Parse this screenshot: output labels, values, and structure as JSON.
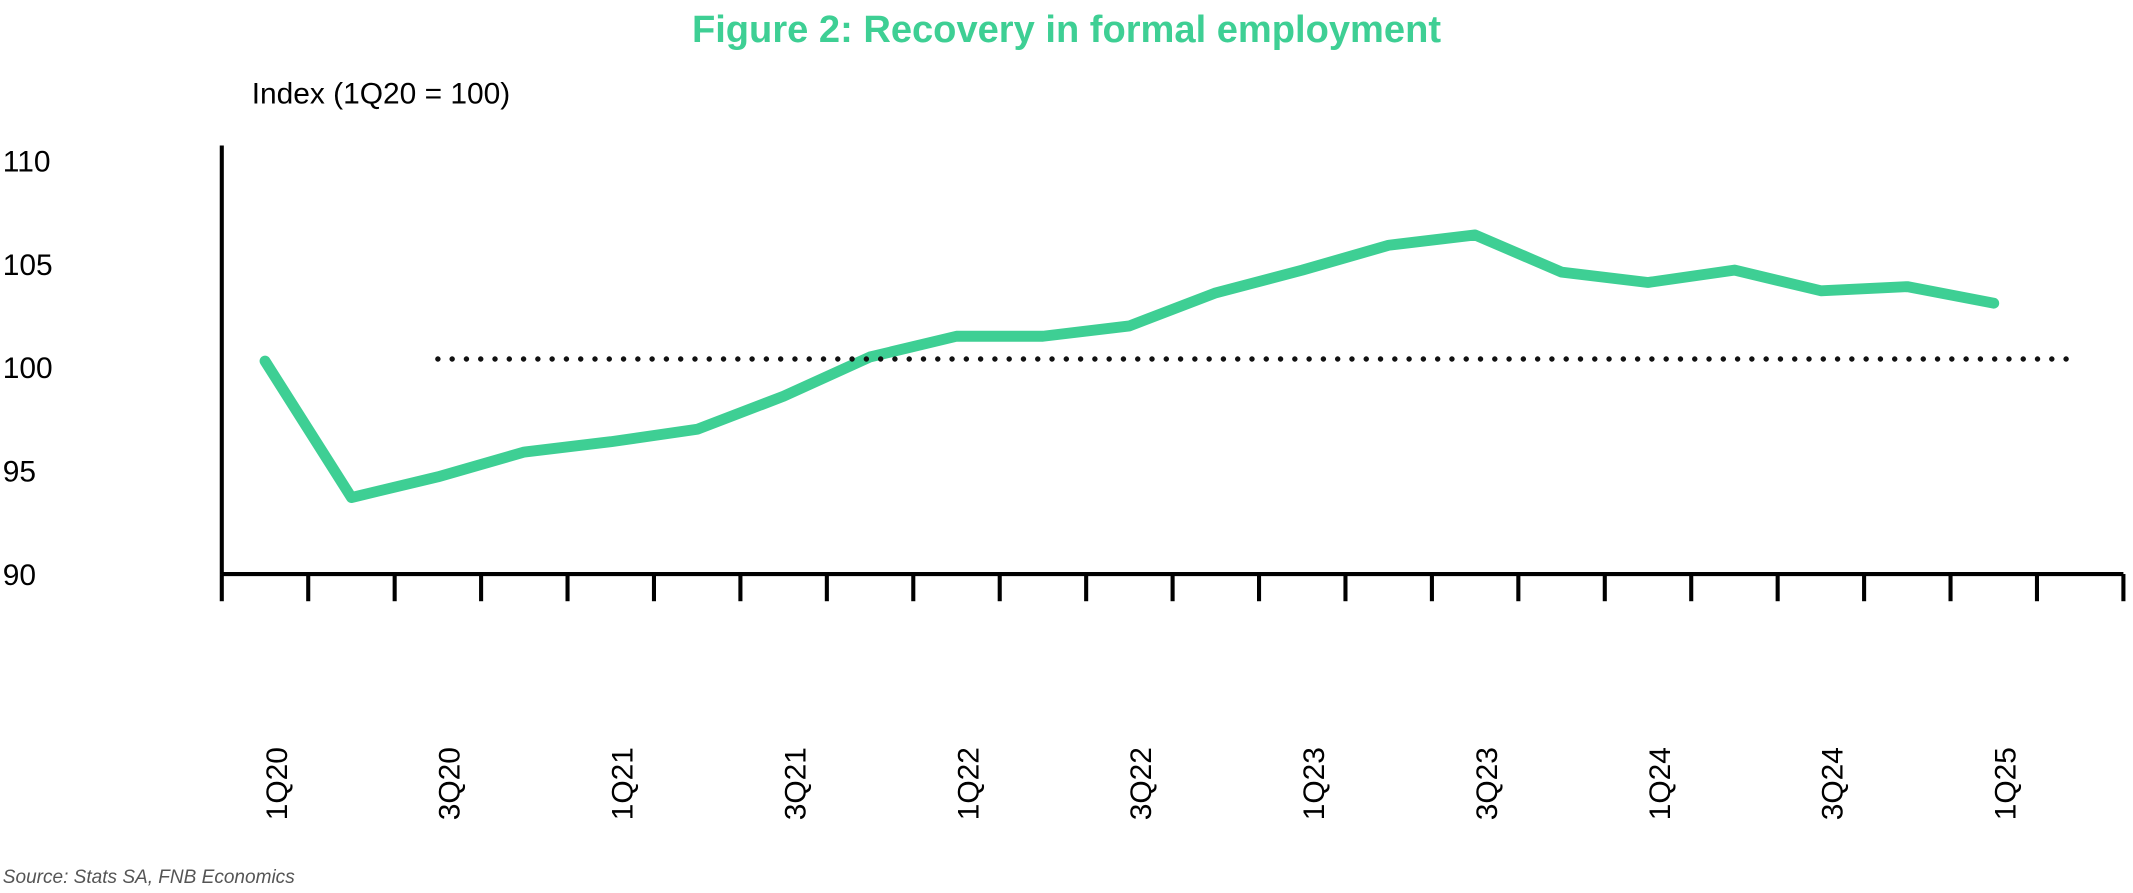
{
  "chart_data": {
    "type": "line",
    "title": "Figure 2: Recovery in formal employment",
    "y_label": "Index (1Q20 = 100)",
    "source": "Source: Stats SA, FNB Economics",
    "categories": [
      "1Q20",
      null,
      "3Q20",
      null,
      "1Q21",
      null,
      "3Q21",
      null,
      "1Q22",
      null,
      "3Q22",
      null,
      "1Q23",
      null,
      "3Q23",
      null,
      "1Q24",
      null,
      "3Q24",
      null,
      "1Q25",
      null
    ],
    "series": [
      {
        "color": "#3ecf94",
        "style": "solid",
        "values": [
          100.3,
          93.7,
          94.7,
          95.9,
          96.4,
          97.0,
          98.6,
          100.5,
          101.5,
          101.5,
          102.0,
          103.6,
          104.7,
          105.9,
          106.4,
          104.6,
          104.1,
          104.7,
          103.7,
          103.9,
          103.1,
          null
        ]
      },
      {
        "color": "#111111",
        "style": "dotted",
        "values": [
          null,
          null,
          100.4,
          100.4,
          100.4,
          100.4,
          100.4,
          100.4,
          100.4,
          100.4,
          100.4,
          100.4,
          100.4,
          100.4,
          100.4,
          100.4,
          100.4,
          100.4,
          100.4,
          100.4,
          100.4,
          100.4
        ]
      }
    ],
    "ylim": [
      90,
      110
    ],
    "yticks": [
      90,
      95,
      100,
      105,
      110
    ],
    "grid": false
  }
}
